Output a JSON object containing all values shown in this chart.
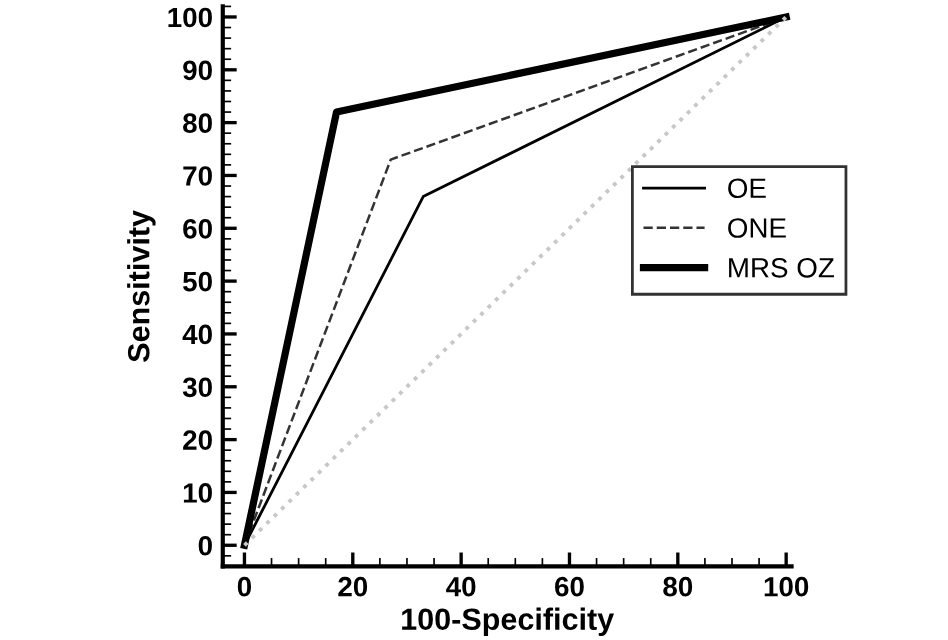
{
  "chart_data": {
    "type": "line",
    "xlabel": "100-Specificity",
    "ylabel": "Sensitivity",
    "xlim": [
      -4,
      101
    ],
    "ylim": [
      -4,
      102
    ],
    "xticks": [
      0,
      20,
      40,
      60,
      80,
      100
    ],
    "yticks": [
      0,
      10,
      20,
      30,
      40,
      50,
      60,
      70,
      80,
      90,
      100
    ],
    "grid": false,
    "legend": "center right",
    "marker": "none",
    "series": [
      {
        "name": "OE",
        "color": "#000000",
        "x": [
          0,
          33,
          100
        ],
        "values": [
          0,
          66,
          100
        ],
        "line_style": "solid"
      },
      {
        "name": "ONE",
        "color": "#333333",
        "x": [
          0,
          27,
          100
        ],
        "values": [
          0,
          73,
          100
        ],
        "line_style": "dashed"
      },
      {
        "name": "MRS OZ",
        "color": "#000000",
        "x": [
          0,
          17,
          100
        ],
        "values": [
          0,
          82,
          100
        ],
        "line_style": "solid"
      },
      {
        "color": "#c8c8c8",
        "x": [
          0,
          100
        ],
        "values": [
          0,
          100
        ],
        "line_style": "dotted"
      }
    ]
  }
}
